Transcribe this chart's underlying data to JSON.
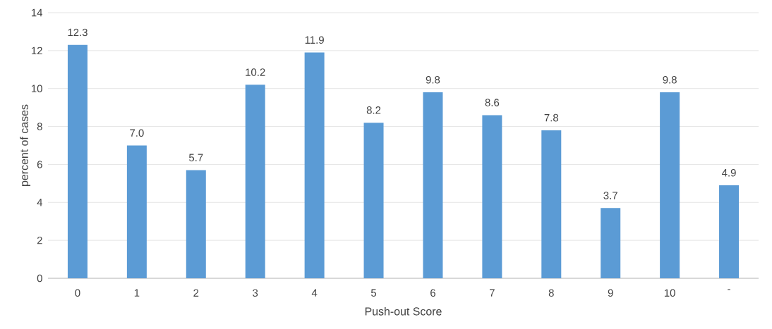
{
  "chart_data": {
    "type": "bar",
    "xlabel": "Push-out Score",
    "ylabel": "percent of cases",
    "categories": [
      "0",
      "1",
      "2",
      "3",
      "4",
      "5",
      "6",
      "7",
      "8",
      "9",
      "10",
      "-"
    ],
    "values": [
      12.3,
      7.0,
      5.7,
      10.2,
      11.9,
      8.2,
      9.8,
      8.6,
      7.8,
      3.7,
      9.8,
      4.9
    ],
    "value_labels": [
      "12.3",
      "7.0",
      "5.7",
      "10.2",
      "11.9",
      "8.2",
      "9.8",
      "8.6",
      "7.8",
      "3.7",
      "9.8",
      "4.9"
    ],
    "color": "#5b9bd5",
    "ylim": [
      0,
      14
    ],
    "yticks": [
      0,
      2,
      4,
      6,
      8,
      10,
      12,
      14
    ],
    "grid": "y"
  }
}
